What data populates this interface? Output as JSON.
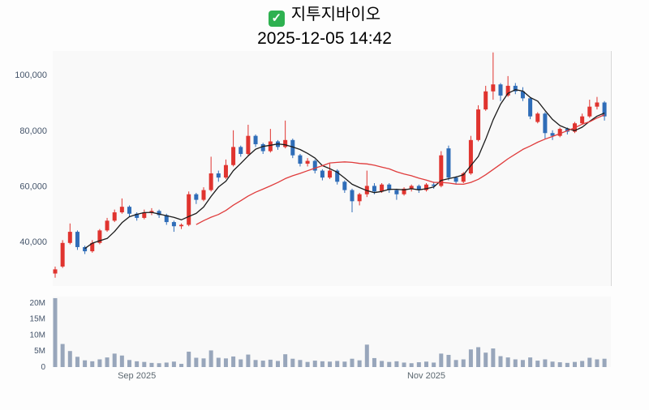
{
  "header": {
    "check_icon": "✓",
    "title": "지투지바이오",
    "datetime": "2025-12-05 14:42"
  },
  "chart_data": {
    "type": "candlestick",
    "title": "지투지바이오",
    "subtitle": "2025-12-05 14:42",
    "grid": false,
    "legend": "none",
    "price_axis": {
      "range": [
        24000,
        108500
      ],
      "ticks": [
        40000,
        60000,
        80000,
        100000
      ],
      "labels": [
        "40,000",
        "60,000",
        "80,000",
        "100,000"
      ]
    },
    "volume_axis": {
      "unit": "M",
      "range": [
        0,
        22
      ],
      "ticks": [
        0,
        5,
        10,
        15,
        20
      ],
      "labels": [
        "0",
        "5M",
        "10M",
        "15M",
        "20M"
      ]
    },
    "x_ticks": [
      {
        "index": 11,
        "label": "Sep 2025"
      },
      {
        "index": 50,
        "label": "Nov 2025"
      }
    ],
    "overlays": [
      {
        "name": "ma-fast",
        "window": 5,
        "color": "#1b1b1b"
      },
      {
        "name": "ma-slow",
        "window": 20,
        "color": "#e03c3c"
      }
    ],
    "colors": {
      "up": "#e0342f",
      "down": "#2f6db8",
      "volume_bar": "#98a6bb",
      "axis_text": "#44546a",
      "month_text": "#5b6770",
      "axis_line": "#d8d8d8",
      "pane_bg": "#f9f9f9"
    },
    "candles": [
      [
        28500,
        31000,
        27000,
        30000,
        21.5
      ],
      [
        31000,
        40500,
        30500,
        39500,
        7.2
      ],
      [
        39500,
        46500,
        39000,
        43500,
        5.0
      ],
      [
        43500,
        44000,
        37000,
        38000,
        3.2
      ],
      [
        38000,
        38500,
        35500,
        36500,
        2.1
      ],
      [
        36500,
        40500,
        36000,
        39500,
        1.8
      ],
      [
        39500,
        44500,
        39000,
        44000,
        2.4
      ],
      [
        44000,
        48500,
        43500,
        47500,
        3.0
      ],
      [
        47500,
        51500,
        47000,
        50500,
        4.2
      ],
      [
        50500,
        55500,
        50000,
        52500,
        3.6
      ],
      [
        52500,
        53000,
        49000,
        50000,
        2.2
      ],
      [
        50000,
        50500,
        47500,
        48500,
        1.8
      ],
      [
        48500,
        51500,
        48000,
        50500,
        1.6
      ],
      [
        50500,
        52000,
        49500,
        51000,
        1.3
      ],
      [
        51000,
        51500,
        48500,
        49500,
        1.2
      ],
      [
        49500,
        50000,
        46000,
        47000,
        1.4
      ],
      [
        47000,
        47500,
        43500,
        45500,
        1.7
      ],
      [
        45500,
        46500,
        44500,
        46000,
        1.0
      ],
      [
        46000,
        58000,
        45500,
        57000,
        4.8
      ],
      [
        57000,
        57500,
        53500,
        55000,
        2.9
      ],
      [
        55000,
        59500,
        54500,
        58500,
        2.7
      ],
      [
        58500,
        70500,
        58000,
        64500,
        5.2
      ],
      [
        64500,
        65500,
        61500,
        63000,
        2.9
      ],
      [
        63000,
        69500,
        62500,
        67500,
        2.7
      ],
      [
        67500,
        80000,
        67000,
        74000,
        3.3
      ],
      [
        74000,
        74500,
        70500,
        71500,
        2.4
      ],
      [
        71500,
        82000,
        71000,
        78000,
        3.9
      ],
      [
        78000,
        78500,
        74000,
        75000,
        2.2
      ],
      [
        75000,
        75500,
        71500,
        72500,
        2.0
      ],
      [
        72500,
        80500,
        72000,
        76000,
        2.3
      ],
      [
        76000,
        76500,
        73000,
        74000,
        1.9
      ],
      [
        74000,
        83500,
        73500,
        76500,
        4.0
      ],
      [
        76500,
        77000,
        70000,
        71000,
        2.6
      ],
      [
        71000,
        71500,
        67000,
        68000,
        2.2
      ],
      [
        68000,
        70000,
        67000,
        69000,
        1.6
      ],
      [
        69000,
        69500,
        64500,
        65500,
        2.0
      ],
      [
        65500,
        66000,
        62000,
        63000,
        1.8
      ],
      [
        63000,
        68000,
        62500,
        65500,
        1.7
      ],
      [
        65500,
        66000,
        60500,
        61500,
        1.9
      ],
      [
        61500,
        62000,
        57500,
        58500,
        1.7
      ],
      [
        58500,
        59000,
        50500,
        54500,
        2.6
      ],
      [
        54500,
        57500,
        53000,
        57000,
        2.1
      ],
      [
        57000,
        65500,
        56000,
        60000,
        7.0
      ],
      [
        60000,
        61000,
        57000,
        58000,
        2.8
      ],
      [
        58000,
        61000,
        57500,
        60500,
        1.9
      ],
      [
        60500,
        61000,
        57500,
        58500,
        1.6
      ],
      [
        58500,
        59000,
        55000,
        57000,
        1.8
      ],
      [
        57000,
        59500,
        56500,
        59000,
        1.4
      ],
      [
        59000,
        60500,
        58000,
        60000,
        1.2
      ],
      [
        60000,
        60500,
        57500,
        58500,
        1.5
      ],
      [
        58500,
        61000,
        58000,
        60500,
        1.7
      ],
      [
        60500,
        61500,
        59000,
        60000,
        1.4
      ],
      [
        60000,
        72500,
        59500,
        71000,
        4.2
      ],
      [
        73500,
        74500,
        62000,
        63000,
        3.8
      ],
      [
        63000,
        63500,
        60500,
        61500,
        2.2
      ],
      [
        61500,
        65000,
        61000,
        64500,
        2.4
      ],
      [
        64500,
        78000,
        64000,
        76500,
        5.5
      ],
      [
        76500,
        89000,
        76000,
        87500,
        6.2
      ],
      [
        87500,
        96000,
        87000,
        94000,
        4.5
      ],
      [
        94000,
        108000,
        91000,
        96500,
        5.8
      ],
      [
        96500,
        97000,
        90500,
        92500,
        3.4
      ],
      [
        92500,
        99500,
        92000,
        96000,
        3.0
      ],
      [
        96000,
        97000,
        93000,
        94000,
        2.4
      ],
      [
        94000,
        95500,
        90500,
        91500,
        2.2
      ],
      [
        91500,
        92000,
        84000,
        85000,
        3.0
      ],
      [
        83000,
        86500,
        82500,
        86000,
        2.0
      ],
      [
        86000,
        86500,
        77000,
        79000,
        2.4
      ],
      [
        79000,
        80000,
        76500,
        78000,
        1.7
      ],
      [
        78000,
        81000,
        77500,
        80500,
        1.5
      ],
      [
        80500,
        81000,
        78500,
        79500,
        1.3
      ],
      [
        79500,
        83000,
        79000,
        82500,
        1.6
      ],
      [
        82500,
        86000,
        82000,
        85000,
        1.9
      ],
      [
        85000,
        91000,
        84500,
        88500,
        2.9
      ],
      [
        88500,
        92000,
        87500,
        90000,
        2.4
      ],
      [
        90000,
        90500,
        83500,
        85000,
        2.6
      ]
    ]
  }
}
